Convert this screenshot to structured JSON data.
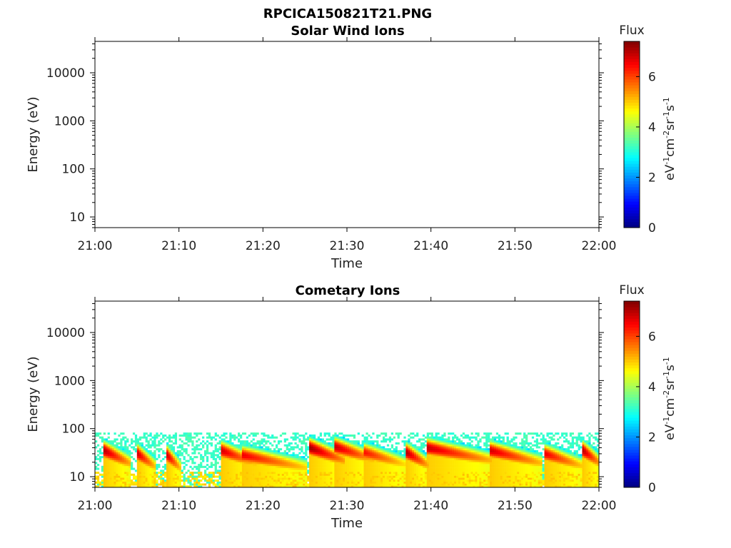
{
  "figure": {
    "title": "RPCICA150821T21.PNG"
  },
  "colorbar": {
    "label": "Flux",
    "unit_parts": [
      "eV",
      "-1",
      "cm",
      "-2",
      "sr",
      "-1",
      "s",
      "-1"
    ],
    "range": [
      0,
      7.4
    ],
    "ticks": [
      {
        "value": 0,
        "label": "0"
      },
      {
        "value": 2,
        "label": "2"
      },
      {
        "value": 4,
        "label": "4"
      },
      {
        "value": 6,
        "label": "6"
      }
    ],
    "colormap": "jet"
  },
  "chart_data": [
    {
      "type": "heatmap",
      "title": "Solar Wind Ions",
      "xlabel": "Time",
      "ylabel": "Energy (eV)",
      "yscale": "log",
      "xlim": [
        "21:00",
        "22:00"
      ],
      "ylim": [
        6,
        45000
      ],
      "xticks": [
        "21:00",
        "21:10",
        "21:20",
        "21:30",
        "21:40",
        "21:50",
        "22:00"
      ],
      "yticks": [
        {
          "value": 10,
          "label": "10"
        },
        {
          "value": 100,
          "label": "100"
        },
        {
          "value": 1000,
          "label": "1000"
        },
        {
          "value": 10000,
          "label": "10000"
        }
      ],
      "events": []
    },
    {
      "type": "heatmap",
      "title": "Cometary Ions",
      "xlabel": "Time",
      "ylabel": "Energy (eV)",
      "yscale": "log",
      "xlim": [
        "21:00",
        "22:00"
      ],
      "ylim": [
        6,
        45000
      ],
      "xticks": [
        "21:00",
        "21:10",
        "21:20",
        "21:30",
        "21:40",
        "21:50",
        "22:00"
      ],
      "yticks": [
        {
          "value": 10,
          "label": "10"
        },
        {
          "value": 100,
          "label": "100"
        },
        {
          "value": 1000,
          "label": "1000"
        },
        {
          "value": 10000,
          "label": "10000"
        }
      ],
      "background": {
        "emin": 6,
        "emax": 80,
        "flux": 3
      },
      "events": [
        {
          "start": 1.0,
          "end": 4.0,
          "peak_energy": 35,
          "peak_flux": 7.0
        },
        {
          "start": 5.0,
          "end": 7.0,
          "peak_energy": 30,
          "peak_flux": 6.8
        },
        {
          "start": 8.5,
          "end": 10.0,
          "peak_energy": 28,
          "peak_flux": 6.8
        },
        {
          "start": 15.0,
          "end": 19.0,
          "peak_energy": 35,
          "peak_flux": 6.8
        },
        {
          "start": 17.5,
          "end": 25.0,
          "peak_energy": 28,
          "peak_flux": 6.6
        },
        {
          "start": 25.5,
          "end": 29.5,
          "peak_energy": 40,
          "peak_flux": 7.2
        },
        {
          "start": 28.5,
          "end": 33.0,
          "peak_energy": 42,
          "peak_flux": 6.9
        },
        {
          "start": 32.0,
          "end": 37.0,
          "peak_energy": 32,
          "peak_flux": 6.4
        },
        {
          "start": 37.0,
          "end": 39.5,
          "peak_energy": 32,
          "peak_flux": 7.0
        },
        {
          "start": 39.5,
          "end": 47.0,
          "peak_energy": 40,
          "peak_flux": 6.9
        },
        {
          "start": 47.0,
          "end": 53.0,
          "peak_energy": 35,
          "peak_flux": 6.8
        },
        {
          "start": 53.5,
          "end": 58.0,
          "peak_energy": 30,
          "peak_flux": 6.6
        },
        {
          "start": 58.0,
          "end": 60.0,
          "peak_energy": 35,
          "peak_flux": 7.0
        }
      ]
    }
  ]
}
